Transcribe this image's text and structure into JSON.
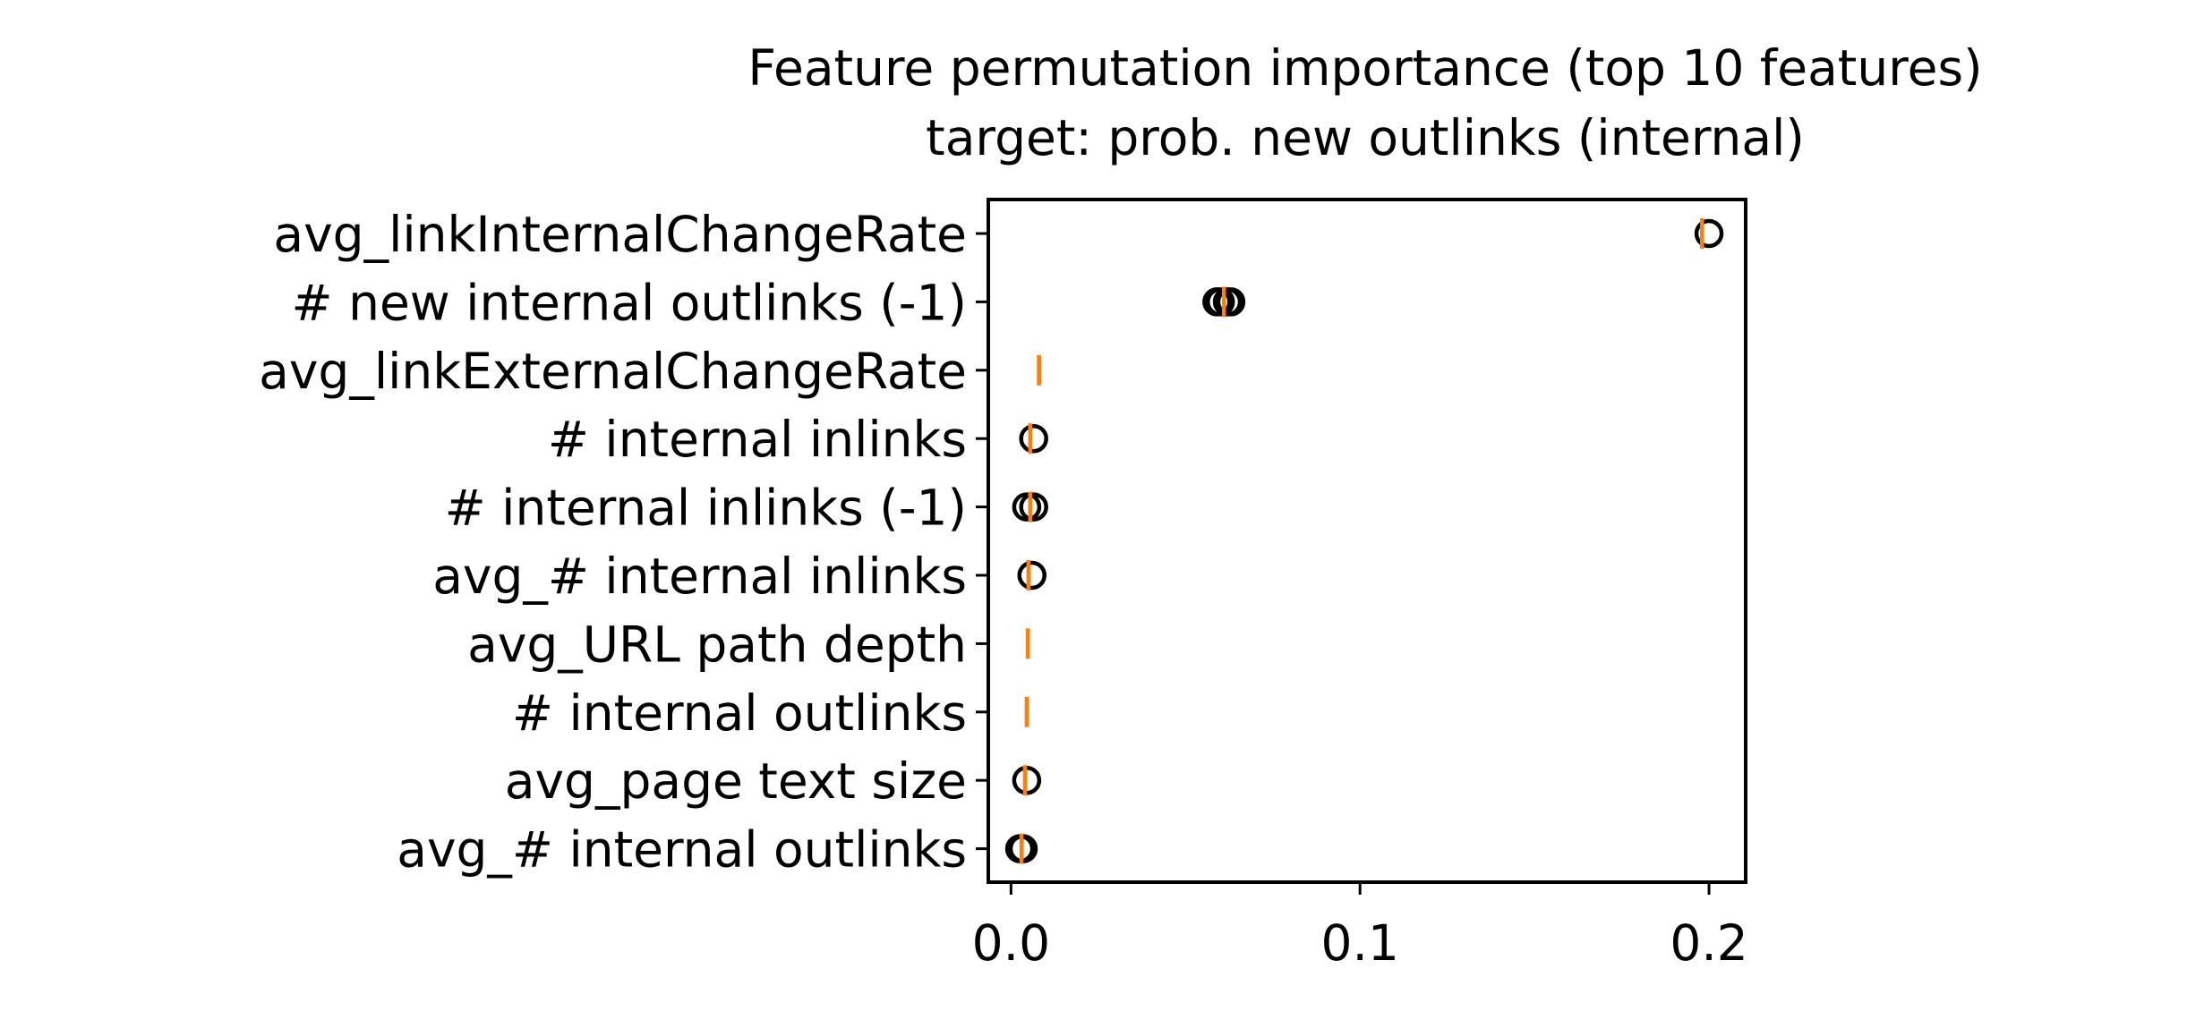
{
  "colors": {
    "background": "#ffffff",
    "axes": "#000000",
    "outlier_marker": "#000000",
    "median_line": "#ff7f0e"
  },
  "chart_data": {
    "type": "box",
    "orientation": "horizontal",
    "title": "Feature permutation importance (top 10 features)",
    "subtitle": "target: prob. new outlinks (internal)",
    "xlabel": "",
    "ylabel": "",
    "xlim": [
      -0.0065,
      0.2105
    ],
    "xticks": [
      0.0,
      0.1,
      0.2
    ],
    "xtick_labels": [
      "0.0",
      "0.1",
      "0.2"
    ],
    "grid": false,
    "features": [
      {
        "label": "avg_linkInternalChangeRate",
        "median": 0.198,
        "q1": 0.1978,
        "q3": 0.1982,
        "whisker_low": 0.1976,
        "whisker_high": 0.1984,
        "outliers": [
          0.2
        ]
      },
      {
        "label": "# new internal outlinks (-1)",
        "median": 0.061,
        "q1": 0.0608,
        "q3": 0.0613,
        "whisker_low": 0.0606,
        "whisker_high": 0.0615,
        "outliers": [
          0.059,
          0.06,
          0.062,
          0.063
        ]
      },
      {
        "label": "avg_linkExternalChangeRate",
        "median": 0.008,
        "q1": 0.0078,
        "q3": 0.0082,
        "whisker_low": 0.0077,
        "whisker_high": 0.0083,
        "outliers": []
      },
      {
        "label": "# internal inlinks",
        "median": 0.0055,
        "q1": 0.0053,
        "q3": 0.0057,
        "whisker_low": 0.0052,
        "whisker_high": 0.0058,
        "outliers": [
          0.0065
        ]
      },
      {
        "label": "# internal inlinks (-1)",
        "median": 0.0055,
        "q1": 0.0053,
        "q3": 0.0057,
        "whisker_low": 0.0052,
        "whisker_high": 0.0058,
        "outliers": [
          0.0045,
          0.0065
        ]
      },
      {
        "label": "avg_# internal inlinks",
        "median": 0.005,
        "q1": 0.0048,
        "q3": 0.0052,
        "whisker_low": 0.0047,
        "whisker_high": 0.0053,
        "outliers": [
          0.006
        ]
      },
      {
        "label": "avg_URL path depth",
        "median": 0.0048,
        "q1": 0.0046,
        "q3": 0.005,
        "whisker_low": 0.0045,
        "whisker_high": 0.0051,
        "outliers": []
      },
      {
        "label": "# internal outlinks",
        "median": 0.0045,
        "q1": 0.0043,
        "q3": 0.0047,
        "whisker_low": 0.0042,
        "whisker_high": 0.0048,
        "outliers": []
      },
      {
        "label": "avg_page text size",
        "median": 0.004,
        "q1": 0.0038,
        "q3": 0.0042,
        "whisker_low": 0.0037,
        "whisker_high": 0.0043,
        "outliers": [
          0.0045
        ]
      },
      {
        "label": "avg_# internal outlinks",
        "median": 0.003,
        "q1": 0.0028,
        "q3": 0.0032,
        "whisker_low": 0.0027,
        "whisker_high": 0.0033,
        "outliers": [
          0.0025,
          0.0035
        ]
      }
    ]
  }
}
